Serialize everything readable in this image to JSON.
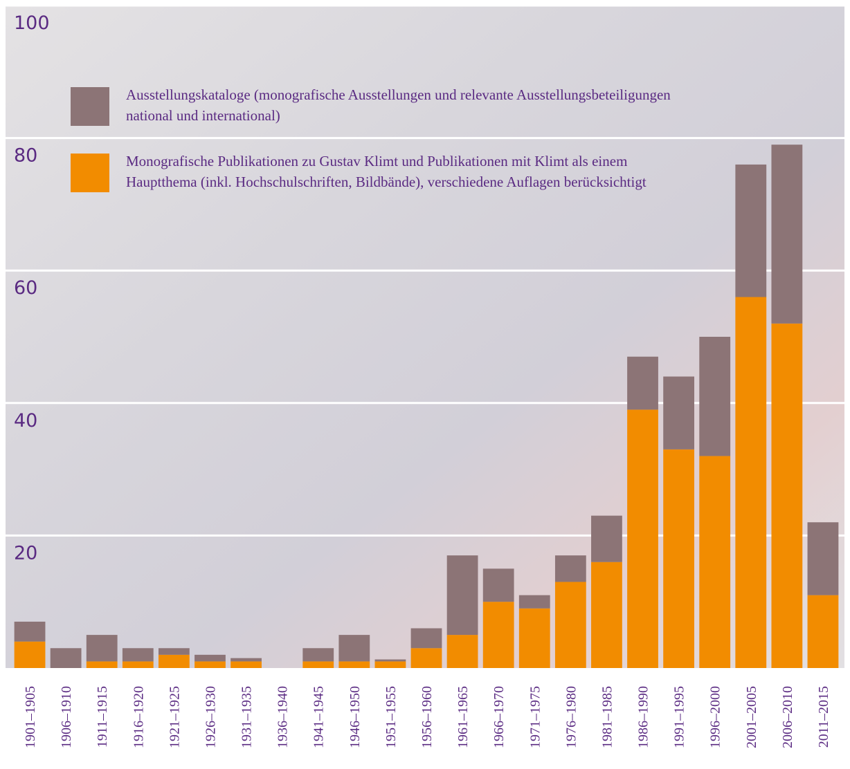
{
  "chart_data": {
    "type": "stacked-bar",
    "categories": [
      "1901–1905",
      "1906–1910",
      "1911–1915",
      "1916–1920",
      "1921–1925",
      "1926–1930",
      "1931–1935",
      "1936–1940",
      "1941–1945",
      "1946–1950",
      "1951–1955",
      "1956–1960",
      "1961–1965",
      "1966–1970",
      "1971–1975",
      "1976–1980",
      "1981–1985",
      "1986–1990",
      "1991–1995",
      "1996–2000",
      "2001–2005",
      "2006–2010",
      "2011–2015"
    ],
    "series": [
      {
        "name": "Monografische Publikationen zu Gustav Klimt und Publikationen mit Klimt als einem Hauptthema (inkl. Hochschulschriften, Bildbände), verschiedene Auflagen berücksichtigt",
        "color": "#f28c00",
        "values": [
          4,
          0,
          1,
          1,
          2,
          1,
          1,
          0,
          1,
          1,
          1,
          3,
          5,
          10,
          9,
          13,
          16,
          39,
          33,
          32,
          56,
          52,
          11
        ]
      },
      {
        "name": "Ausstellungskataloge (monografische Ausstellungen und relevante Ausstellungsbeteiligungen national und international)",
        "color": "#8c7476",
        "values": [
          3,
          3,
          4,
          2,
          1,
          1,
          0.5,
          0,
          2,
          4,
          0.3,
          3,
          12,
          5,
          2,
          4,
          7,
          8,
          11,
          18,
          20,
          27,
          11
        ]
      }
    ],
    "ylim": [
      0,
      100
    ],
    "yticks": [
      20,
      40,
      60,
      80,
      100
    ],
    "grid": true
  }
}
